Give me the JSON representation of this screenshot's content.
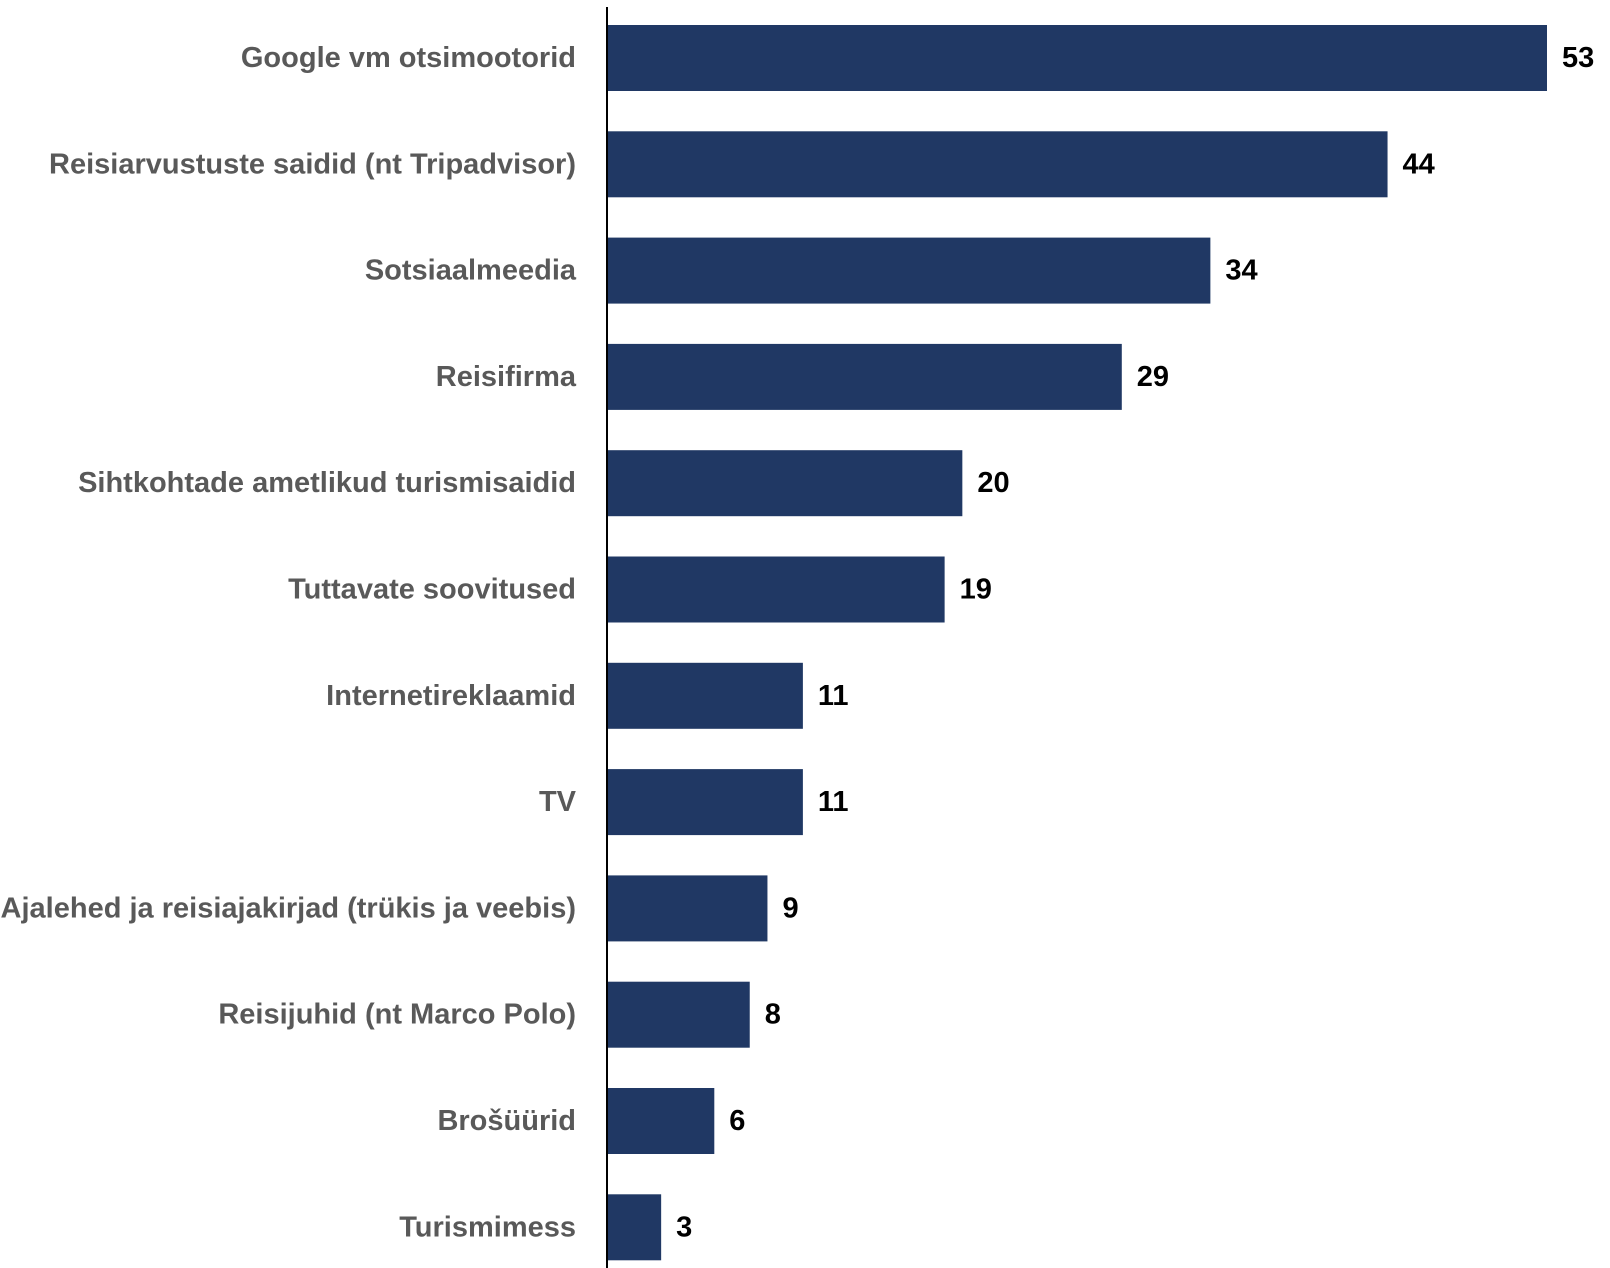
{
  "chart_data": {
    "type": "bar",
    "orientation": "horizontal",
    "categories": [
      "Google vm otsimootorid",
      "Reisiarvustuste saidid (nt Tripadvisor)",
      "Sotsiaalmeedia",
      "Reisifirma",
      "Sihtkohtade ametlikud turismisaidid",
      "Tuttavate soovitused",
      "Internetireklaamid",
      "TV",
      "Ajalehed ja reisiajakirjad (trükis ja veebis)",
      "Reisijuhid (nt Marco Polo)",
      "Brošüürid",
      "Turismimess"
    ],
    "values": [
      53,
      44,
      34,
      29,
      20,
      19,
      11,
      11,
      9,
      8,
      6,
      3
    ],
    "value_labels": [
      "53",
      "44",
      "34",
      "29",
      "20",
      "19",
      "11",
      "11",
      "9",
      "8",
      "6",
      "3"
    ],
    "title": "",
    "xlabel": "",
    "ylabel": "",
    "xlim": [
      0,
      53
    ],
    "grid": false,
    "legend": "none",
    "bar_color": "#203864",
    "axis_color": "#000000",
    "category_label_color": "#595959",
    "value_label_color": "#000000"
  }
}
